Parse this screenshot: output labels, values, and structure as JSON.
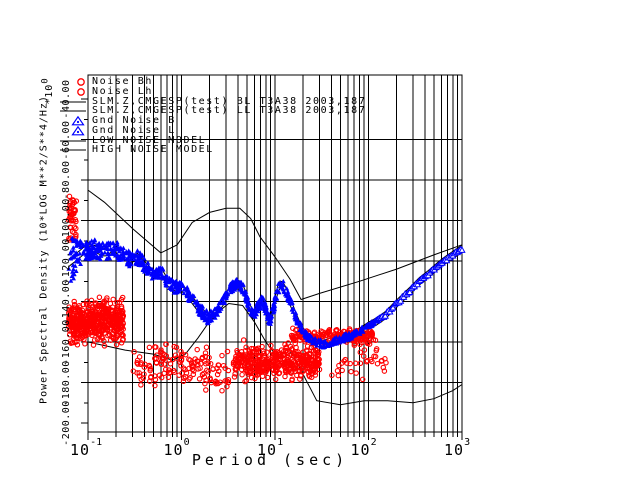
{
  "plot": {
    "x_axis": {
      "label": "Period (sec)",
      "tick_base": "10",
      "tick_exponents": [
        "-1",
        "0",
        "1",
        "2",
        "3"
      ]
    },
    "y_axis": {
      "label": "Power Spectral Density (10*LOG M**2/S**4/Hz)",
      "multiplier_base": "*10",
      "multiplier_exp": "0",
      "tick_labels": [
        "-40.00",
        "-60.00",
        "-80.00",
        "-100.00",
        "-120.00",
        "-140.00",
        "-160.00",
        "-180.00",
        "-200.00"
      ]
    },
    "legend": [
      {
        "symbol": "red-circle",
        "label": "Noise Bh"
      },
      {
        "symbol": "red-circle",
        "label": "Noise Lh"
      },
      {
        "symbol": "black-line",
        "label": "SLM.Z,CMGESP(test) BL T3A38 2003,187"
      },
      {
        "symbol": "black-line",
        "label": "SLM.Z,CMGESP(test) LL T3A38 2003,187"
      },
      {
        "symbol": "blue-triangle",
        "label": "Gnd Noise B"
      },
      {
        "symbol": "blue-triangle",
        "label": "Gnd Noise L"
      },
      {
        "symbol": "black-line",
        "label": "LOW NOISE MODEL"
      },
      {
        "symbol": "black-line",
        "label": "HIGH NOISE MODEL"
      }
    ],
    "colors": {
      "noise_scatter": "#ff0000",
      "gnd_noise": "#0000ff",
      "lines": "#000000",
      "background": "#ffffff"
    }
  },
  "chart_data": {
    "type": "scatter",
    "title": "",
    "xlabel": "Period (sec)",
    "ylabel": "Power Spectral Density (10*LOG M**2/S**4/Hz) *10^0",
    "x_scale": "log",
    "xlim": [
      0.1,
      1000
    ],
    "ylim": [
      -204,
      -28
    ],
    "y_tick_values": [
      -40,
      -60,
      -80,
      -100,
      -120,
      -140,
      -160,
      -180,
      -200
    ],
    "grid": "on",
    "legend_position": "top-left-inside",
    "series": [
      {
        "name": "Gnd Noise B/L",
        "marker": "triangle",
        "color": "#0000ff",
        "anchors": [
          [
            0.062,
            -121,
            14
          ],
          [
            0.075,
            -118,
            8
          ],
          [
            0.09,
            -115,
            5
          ],
          [
            0.12,
            -114,
            4.5
          ],
          [
            0.15,
            -116,
            4.5
          ],
          [
            0.19,
            -113,
            4.5
          ],
          [
            0.23,
            -117,
            4
          ],
          [
            0.28,
            -119,
            4
          ],
          [
            0.34,
            -118,
            3.5
          ],
          [
            0.42,
            -123,
            3.5
          ],
          [
            0.52,
            -127,
            3
          ],
          [
            0.62,
            -126,
            3
          ],
          [
            0.72,
            -131,
            3
          ],
          [
            0.85,
            -133,
            3
          ],
          [
            1.0,
            -133,
            3
          ],
          [
            1.2,
            -137,
            3
          ],
          [
            1.5,
            -143,
            3
          ],
          [
            1.9,
            -148,
            3
          ],
          [
            2.3,
            -146,
            2.5
          ],
          [
            2.8,
            -140,
            2.5
          ],
          [
            3.4,
            -133,
            2.5
          ],
          [
            4.0,
            -131,
            2.5
          ],
          [
            4.6,
            -134,
            2.5
          ],
          [
            5.2,
            -141,
            2.5
          ],
          [
            5.8,
            -147,
            2.5
          ],
          [
            6.5,
            -143,
            3
          ],
          [
            7.2,
            -139,
            3
          ],
          [
            8.0,
            -144,
            3
          ],
          [
            8.8,
            -150,
            3
          ],
          [
            9.6,
            -144,
            3
          ],
          [
            10.5,
            -135,
            3
          ],
          [
            11.5,
            -131,
            3
          ],
          [
            12.5,
            -133,
            3
          ],
          [
            14,
            -138,
            3
          ],
          [
            16,
            -145,
            2.5
          ],
          [
            18,
            -151,
            2.5
          ],
          [
            20,
            -155,
            2
          ],
          [
            23,
            -158,
            2
          ],
          [
            27,
            -160,
            2
          ],
          [
            32,
            -161,
            2
          ],
          [
            38,
            -160,
            2
          ],
          [
            45,
            -159,
            2
          ],
          [
            55,
            -158,
            1.8
          ],
          [
            65,
            -157,
            1.6
          ],
          [
            80,
            -155,
            1.5
          ],
          [
            100,
            -152,
            1.3
          ],
          [
            120,
            -150,
            1.2
          ],
          [
            150,
            -147,
            1
          ],
          [
            200,
            -141,
            0.9
          ],
          [
            260,
            -136,
            0.8
          ],
          [
            350,
            -130,
            0.7
          ],
          [
            450,
            -126,
            0.6
          ],
          [
            600,
            -121,
            0.5
          ],
          [
            800,
            -117,
            0.5
          ],
          [
            1000,
            -114,
            0.4
          ]
        ],
        "dense_until_period": 130,
        "dense_count": 1000,
        "sparse_count": 55
      },
      {
        "name": "Noise Bh/Lh",
        "marker": "open-circle",
        "color": "#ff0000",
        "clusters": [
          {
            "t_range": [
              0.062,
              0.075
            ],
            "v_uniform": [
              -110,
              -88
            ],
            "count": 45
          },
          {
            "t_range": [
              0.062,
              0.24
            ],
            "v_center": -150,
            "v_spread": 11,
            "v_range": [
              -177,
              -122
            ],
            "count": 520
          },
          {
            "t_range": [
              0.3,
              3.2
            ],
            "v_center": -172,
            "v_spread": 12,
            "v_range": [
              -200,
              -148
            ],
            "count": 150
          },
          {
            "t_range": [
              3.5,
              30
            ],
            "v_center": -170,
            "v_spread": 9,
            "v_range": [
              -197,
              -152
            ],
            "count": 430
          },
          {
            "t_range": [
              15,
              110
            ],
            "v_center": -157,
            "v_spread": 3.5,
            "v_range": [
              -166,
              -147
            ],
            "count": 210
          },
          {
            "t_range": [
              40,
              170
            ],
            "v_center": -170,
            "v_spread": 12,
            "v_range": [
              -196,
              -150
            ],
            "count": 40
          }
        ]
      },
      {
        "name": "SLM.Z,CMGESP(test) BL T3A38 2003,187",
        "type": "line",
        "color": "#000000",
        "follows": "Gnd Noise B/L",
        "offset_db": 1.8
      },
      {
        "name": "SLM.Z,CMGESP(test) LL T3A38 2003,187",
        "type": "line",
        "color": "#000000",
        "follows": "Gnd Noise B/L",
        "offset_db": -1.8
      },
      {
        "name": "LOW NOISE MODEL",
        "type": "line",
        "color": "#000000",
        "points": [
          [
            0.1,
            -160
          ],
          [
            0.25,
            -164
          ],
          [
            0.5,
            -166
          ],
          [
            0.8,
            -169
          ],
          [
            1.1,
            -166
          ],
          [
            1.5,
            -158
          ],
          [
            2.2,
            -147
          ],
          [
            3.2,
            -141
          ],
          [
            4.5,
            -142
          ],
          [
            6,
            -150
          ],
          [
            8,
            -160
          ],
          [
            10,
            -166
          ],
          [
            12,
            -168
          ],
          [
            15,
            -165
          ],
          [
            20,
            -176
          ],
          [
            28,
            -189
          ],
          [
            50,
            -191
          ],
          [
            90,
            -189
          ],
          [
            160,
            -189
          ],
          [
            300,
            -190
          ],
          [
            500,
            -188
          ],
          [
            800,
            -184
          ],
          [
            1000,
            -181
          ]
        ]
      },
      {
        "name": "HIGH NOISE MODEL",
        "type": "line",
        "color": "#000000",
        "points": [
          [
            0.1,
            -85
          ],
          [
            0.15,
            -91
          ],
          [
            0.3,
            -104
          ],
          [
            0.6,
            -116
          ],
          [
            0.9,
            -112
          ],
          [
            1.3,
            -101
          ],
          [
            2,
            -96
          ],
          [
            3,
            -94
          ],
          [
            4.2,
            -94
          ],
          [
            5.5,
            -99
          ],
          [
            6.9,
            -108
          ],
          [
            10,
            -118
          ],
          [
            14.5,
            -129
          ],
          [
            19,
            -139
          ],
          [
            30,
            -136
          ],
          [
            80,
            -130
          ],
          [
            200,
            -124
          ],
          [
            500,
            -117
          ],
          [
            1000,
            -112
          ]
        ]
      }
    ]
  }
}
